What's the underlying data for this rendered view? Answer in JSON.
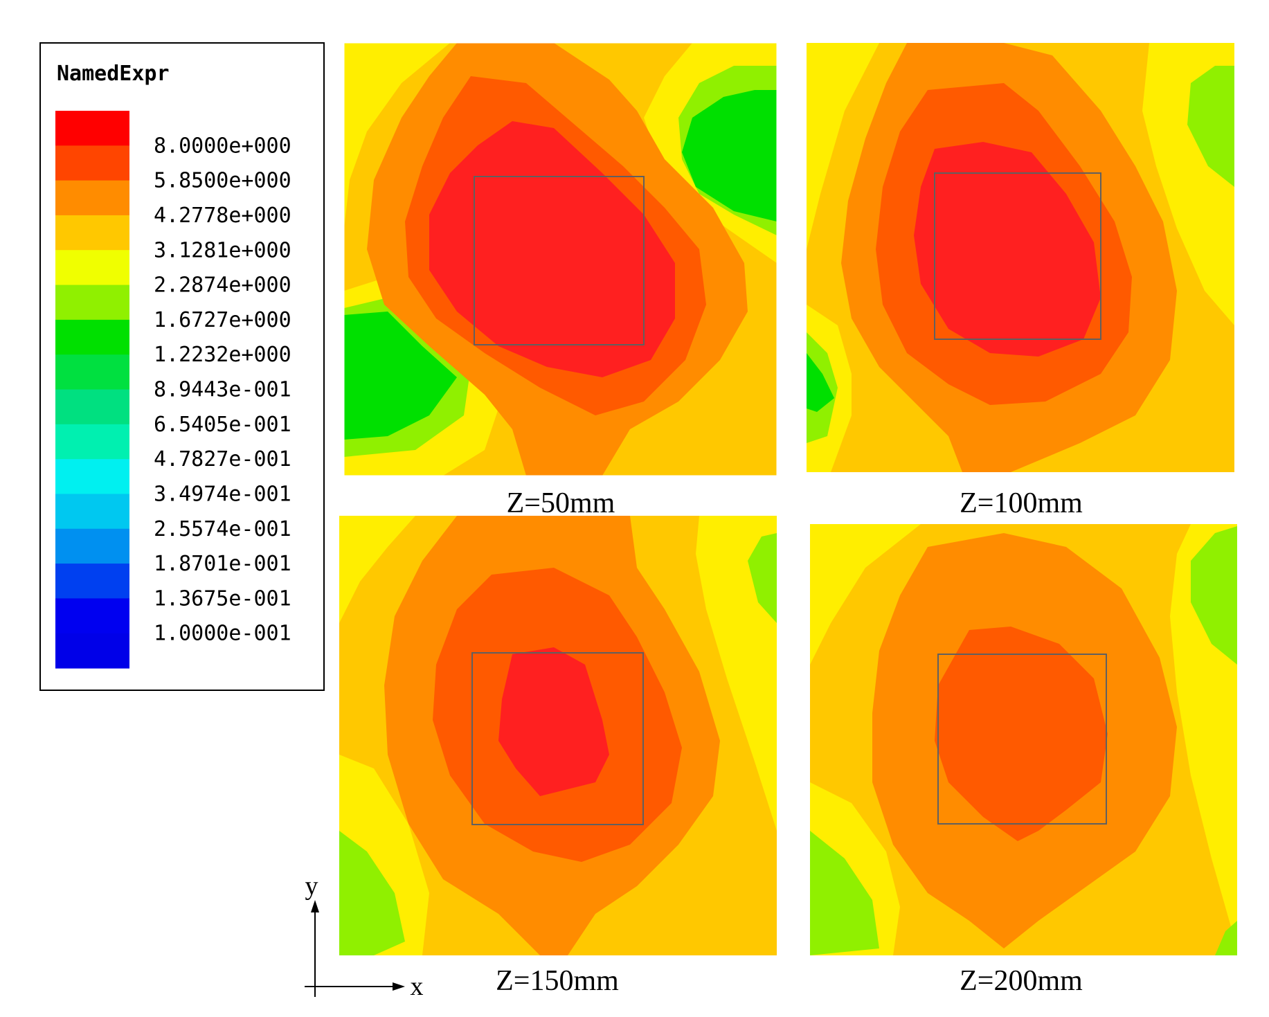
{
  "chart_data": {
    "type": "heatmap",
    "legend": {
      "title": "NamedExpr",
      "levels": [
        "8.0000e+000",
        "5.8500e+000",
        "4.2778e+000",
        "3.1281e+000",
        "2.2874e+000",
        "1.6727e+000",
        "1.2232e+000",
        "8.9443e-001",
        "6.5405e-001",
        "4.7827e-001",
        "3.4974e-001",
        "2.5574e-001",
        "1.8701e-001",
        "1.3675e-001",
        "1.0000e-001"
      ],
      "colors": [
        "#ff0000",
        "#ff4500",
        "#ff8c00",
        "#ffc800",
        "#f0ff00",
        "#90f000",
        "#00e000",
        "#00e040",
        "#00e080",
        "#00f0b0",
        "#00f0f0",
        "#00c8f0",
        "#0090f0",
        "#0040f0",
        "#0000f0",
        "#0000e8"
      ]
    },
    "panels": [
      {
        "label": "Z=50mm",
        "peak_level": "8.0000e+000"
      },
      {
        "label": "Z=100mm",
        "peak_level": "8.0000e+000"
      },
      {
        "label": "Z=150mm",
        "peak_level": "8.0000e+000"
      },
      {
        "label": "Z=200mm",
        "peak_level": "5.8500e+000"
      }
    ],
    "axes": {
      "x_label": "x",
      "y_label": "y"
    }
  }
}
